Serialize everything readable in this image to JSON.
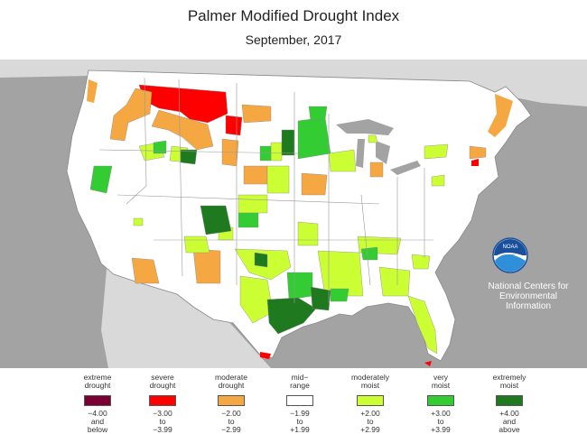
{
  "title": "Palmer Modified Drought Index",
  "subtitle": "September, 2017",
  "agency": {
    "logo_text": "NOAA",
    "line1": "National Centers for",
    "line2": "Environmental",
    "line3": "Information"
  },
  "colors": {
    "extreme_drought": "#7a0033",
    "severe_drought": "#ff0000",
    "moderate_drought": "#f5a742",
    "mid_range": "#ffffff",
    "moderately_moist": "#ccff33",
    "very_moist": "#33cc33",
    "extremely_moist": "#1f7a1f",
    "background": "#a3a3a3",
    "land_neighbors": "#d9d9d9"
  },
  "legend": [
    {
      "label1": "extreme",
      "label2": "drought",
      "r1": "−4.00",
      "r2": "and",
      "r3": "below",
      "color": "#7a0033"
    },
    {
      "label1": "severe",
      "label2": "drought",
      "r1": "−3.00",
      "r2": "to",
      "r3": "−3.99",
      "color": "#ff0000"
    },
    {
      "label1": "moderate",
      "label2": "drought",
      "r1": "−2.00",
      "r2": "to",
      "r3": "−2.99",
      "color": "#f5a742"
    },
    {
      "label1": "mid−",
      "label2": "range",
      "r1": "−1.99",
      "r2": "to",
      "r3": "+1.99",
      "color": "#ffffff"
    },
    {
      "label1": "moderately",
      "label2": "moist",
      "r1": "+2.00",
      "r2": "to",
      "r3": "+2.99",
      "color": "#ccff33"
    },
    {
      "label1": "very",
      "label2": "moist",
      "r1": "+3.00",
      "r2": "to",
      "r3": "+3.99",
      "color": "#33cc33"
    },
    {
      "label1": "extremely",
      "label2": "moist",
      "r1": "+4.00",
      "r2": "and",
      "r3": "above",
      "color": "#1f7a1f"
    }
  ]
}
